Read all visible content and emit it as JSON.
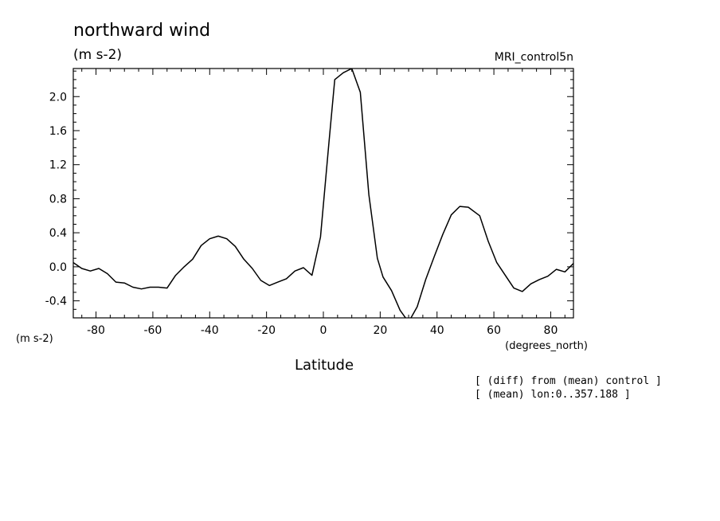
{
  "chart_data": {
    "type": "line",
    "title": "northward wind",
    "units": "(m s-2)",
    "run_label": "MRI_control5n",
    "xlabel": "Latitude",
    "x_unit_label": "(degrees_north)",
    "y_unit_label": "(m s-2)",
    "notes": [
      "[ (diff) from (mean) control ]",
      "[ (mean) lon:0..357.188 ]"
    ],
    "xlim": [
      -88,
      88
    ],
    "ylim": [
      -0.6,
      2.33
    ],
    "x_ticks": [
      -80,
      -60,
      -40,
      -20,
      0,
      20,
      40,
      60,
      80
    ],
    "x_tick_labels": [
      "-80",
      "-60",
      "-40",
      "-20",
      "0",
      "20",
      "40",
      "60",
      "80"
    ],
    "y_ticks": [
      -0.4,
      0.0,
      0.4,
      0.8,
      1.2,
      1.6,
      2.0
    ],
    "y_tick_labels": [
      "-0.4",
      "0.0",
      "0.4",
      "0.8",
      "1.2",
      "1.6",
      "2.0"
    ],
    "grid": false,
    "series": [
      {
        "x": [
          -88,
          -85,
          -82,
          -79,
          -76,
          -73,
          -70,
          -67,
          -64,
          -61,
          -58,
          -55,
          -52,
          -49,
          -46,
          -43,
          -40,
          -37,
          -34,
          -31,
          -28,
          -25,
          -22,
          -19,
          -16,
          -13,
          -10,
          -7,
          -4,
          -1,
          2,
          4,
          7,
          10,
          13,
          16,
          19,
          21,
          24,
          27,
          30,
          33,
          36,
          39,
          42,
          45,
          48,
          51,
          55,
          58,
          61,
          64,
          67,
          70,
          73,
          76,
          79,
          82,
          85,
          88
        ],
        "y": [
          0.05,
          -0.02,
          -0.05,
          -0.02,
          -0.08,
          -0.18,
          -0.19,
          -0.24,
          -0.26,
          -0.24,
          -0.24,
          -0.25,
          -0.1,
          0.0,
          0.09,
          0.25,
          0.33,
          0.36,
          0.33,
          0.24,
          0.09,
          -0.02,
          -0.16,
          -0.22,
          -0.18,
          -0.14,
          -0.05,
          -0.01,
          -0.1,
          0.35,
          1.47,
          2.2,
          2.28,
          2.33,
          2.05,
          0.85,
          0.1,
          -0.12,
          -0.28,
          -0.51,
          -0.65,
          -0.47,
          -0.15,
          0.12,
          0.38,
          0.61,
          0.71,
          0.7,
          0.6,
          0.3,
          0.05,
          -0.1,
          -0.25,
          -0.29,
          -0.2,
          -0.15,
          -0.11,
          -0.03,
          -0.06,
          0.04
        ]
      }
    ]
  }
}
